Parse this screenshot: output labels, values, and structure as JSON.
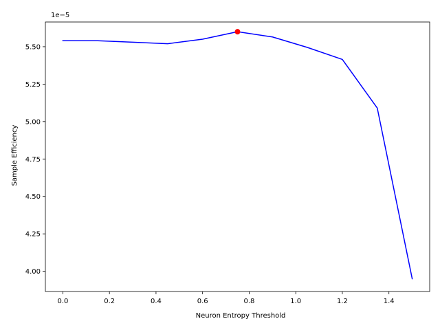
{
  "chart_data": {
    "type": "line",
    "title": "",
    "xlabel": "Neuron Entropy Threshold",
    "ylabel": "Sample Efficiency",
    "y_offset_label": "1e−5",
    "y_scale_factor": 1e-05,
    "xlim": [
      -0.075,
      1.575
    ],
    "ylim": [
      3.865,
      5.665
    ],
    "x_ticks": [
      0.0,
      0.2,
      0.4,
      0.6,
      0.8,
      1.0,
      1.2,
      1.4
    ],
    "x_tick_labels": [
      "0.0",
      "0.2",
      "0.4",
      "0.6",
      "0.8",
      "1.0",
      "1.2",
      "1.4"
    ],
    "y_ticks": [
      4.0,
      4.25,
      4.5,
      4.75,
      5.0,
      5.25,
      5.5
    ],
    "y_tick_labels": [
      "4.00",
      "4.25",
      "4.50",
      "4.75",
      "5.00",
      "5.25",
      "5.50"
    ],
    "grid": false,
    "series": [
      {
        "color": "#0000ff",
        "x": [
          0.0,
          0.15,
          0.3,
          0.45,
          0.6,
          0.75,
          0.9,
          1.05,
          1.2,
          1.35,
          1.5
        ],
        "y": [
          5.54,
          5.54,
          5.53,
          5.52,
          5.55,
          5.6,
          5.565,
          5.495,
          5.415,
          5.09,
          3.95
        ]
      }
    ],
    "highlight_point": {
      "x": 0.75,
      "y": 5.6,
      "color": "#ff0000"
    }
  }
}
